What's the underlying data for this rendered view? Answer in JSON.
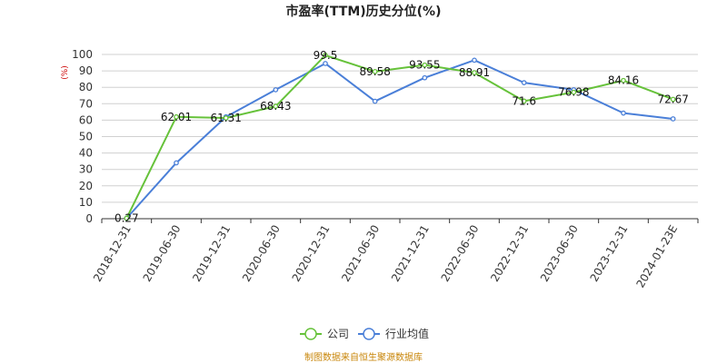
{
  "chart_data": {
    "type": "line",
    "title": "市盈率(TTM)历史分位(%)",
    "unit_label": "(%)",
    "categories": [
      "2018-12-31",
      "2019-06-30",
      "2019-12-31",
      "2020-06-30",
      "2020-12-31",
      "2021-06-30",
      "2021-12-31",
      "2022-06-30",
      "2022-12-31",
      "2023-06-30",
      "2023-12-31",
      "2024-01-23E"
    ],
    "ylim": [
      0,
      100
    ],
    "yticks": [
      0,
      10,
      20,
      30,
      40,
      50,
      60,
      70,
      80,
      90,
      100
    ],
    "grid": true,
    "legend_position": "bottom",
    "series": [
      {
        "name": "公司",
        "color": "#66c23a",
        "values": [
          0.27,
          62.01,
          61.31,
          68.43,
          99.5,
          89.58,
          93.55,
          88.91,
          71.6,
          76.98,
          84.16,
          72.67
        ],
        "labels": [
          "0.27",
          "62.01",
          "61.31",
          "68.43",
          "99.5",
          "89.58",
          "93.55",
          "88.91",
          "71.6",
          "76.98",
          "84.16",
          "72.67"
        ]
      },
      {
        "name": "行业均值",
        "color": "#4a7fd8",
        "values": [
          0.27,
          34,
          62,
          78.5,
          94.5,
          71.5,
          85.8,
          96.5,
          82.8,
          78.5,
          64.3,
          60.8
        ]
      }
    ]
  },
  "footer": {
    "source": "制图数据来自恒生聚源数据库"
  }
}
